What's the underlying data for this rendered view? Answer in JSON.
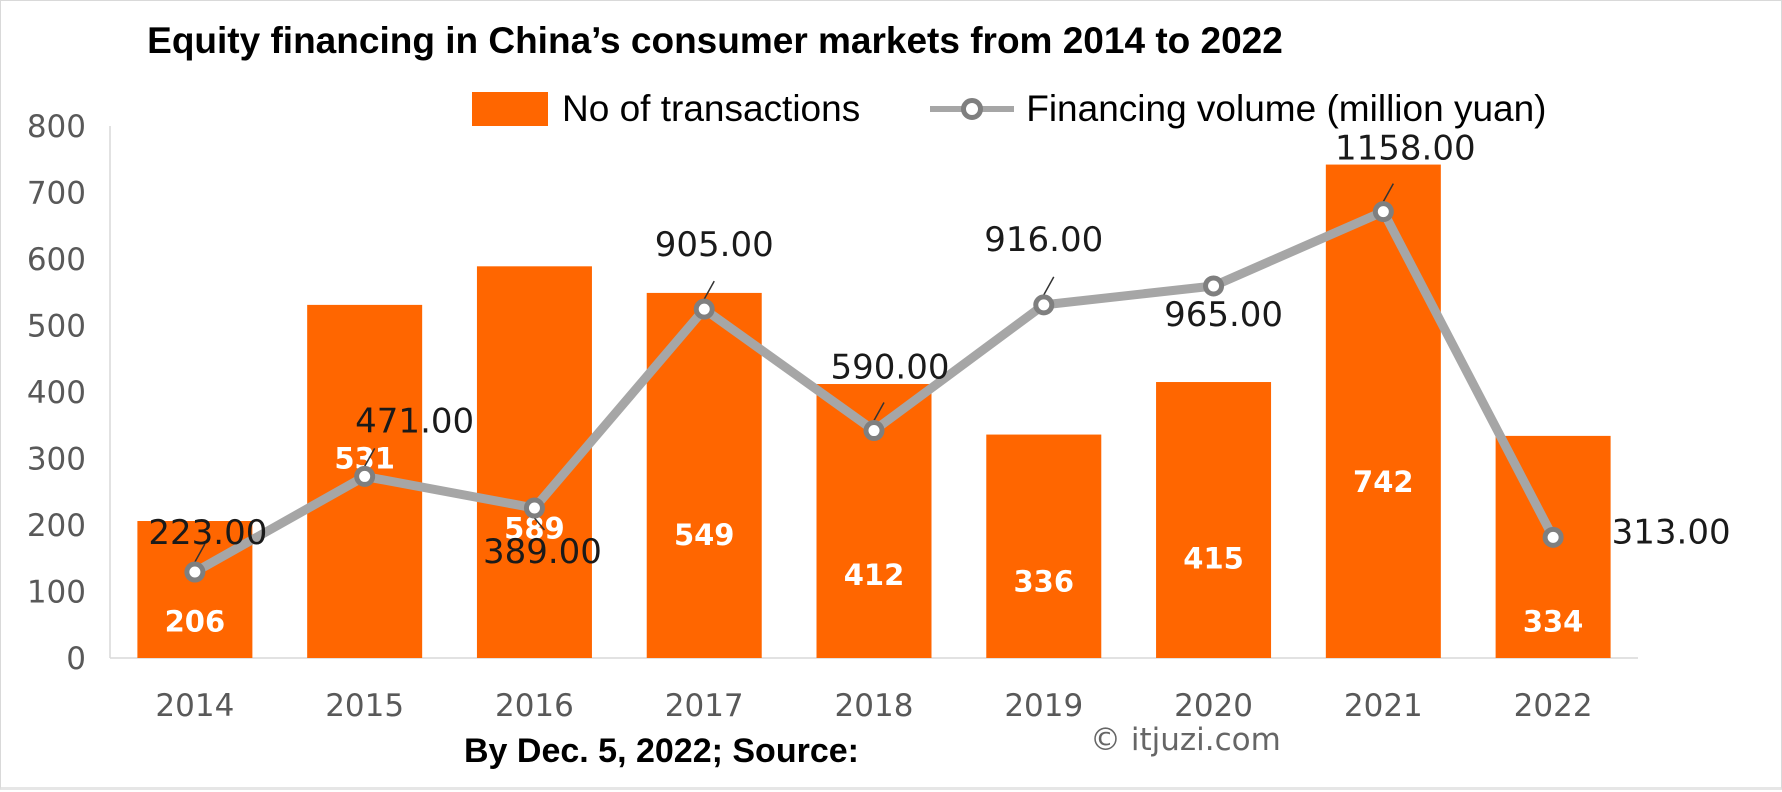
{
  "chart_data": {
    "type": "bar",
    "title": "Equity financing in China’s consumer markets from 2014 to 2022",
    "categories": [
      "2014",
      "2015",
      "2016",
      "2017",
      "2018",
      "2019",
      "2020",
      "2021",
      "2022"
    ],
    "series": [
      {
        "name": "No of transactions",
        "type": "bar",
        "axis": "left",
        "values": [
          206,
          531,
          589,
          549,
          412,
          336,
          415,
          742,
          334
        ],
        "labels": [
          "206",
          "531",
          "589",
          "549",
          "412",
          "336",
          "415",
          "742",
          "334"
        ]
      },
      {
        "name": "Financing volume (million yuan)",
        "type": "line",
        "axis": "secondary (unlabeled)",
        "values": [
          223.0,
          471.0,
          389.0,
          905.0,
          590.0,
          916.0,
          965.0,
          1158.0,
          313.0
        ],
        "labels": [
          "223.00",
          "471.00",
          "389.00",
          "905.00",
          "590.00",
          "916.00",
          "965.00",
          "1158.00",
          "313.00"
        ]
      }
    ],
    "y_ticks": [
      "0",
      "100",
      "200",
      "300",
      "400",
      "500",
      "600",
      "700",
      "800"
    ],
    "ylim": [
      0,
      800
    ],
    "grid": false,
    "legend_position": "top",
    "colors": {
      "bar": "#ff6600",
      "line": "#a6a6a6",
      "marker": "#7f7f7f"
    }
  },
  "footer": {
    "source": "By Dec. 5, 2022; Source:",
    "copyright": "© itjuzi.com"
  }
}
